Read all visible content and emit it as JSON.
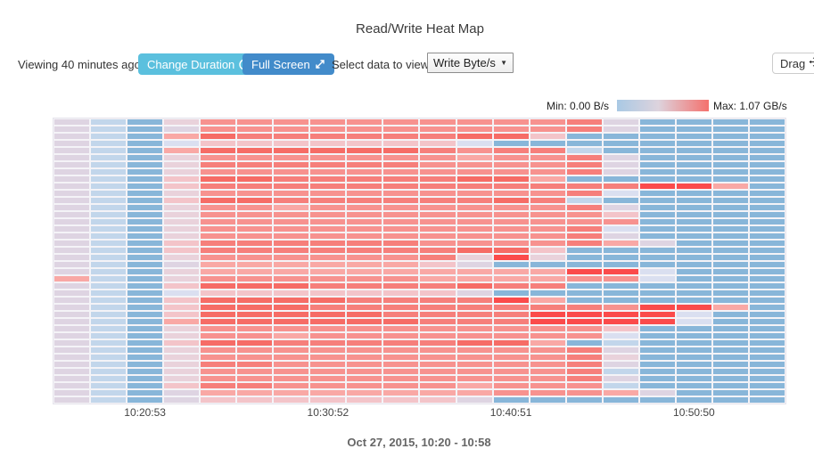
{
  "header": {
    "title": "Read/Write Heat Map"
  },
  "toolbar": {
    "viewing_label": "Viewing 40 minutes ago.",
    "change_duration_label": "Change Duration",
    "full_screen_label": "Full Screen",
    "select_label": "Select data to view",
    "select_value": "Write Byte/s",
    "drag_label": "Drag"
  },
  "legend": {
    "min_label": "Min: 0.00 B/s",
    "max_label": "Max: 1.07 GB/s",
    "gradient": [
      "#a9c9e4",
      "#ddd3dd",
      "#f4716d"
    ]
  },
  "colors": {
    "info_button": "#5bc0de",
    "primary_button": "#428bca",
    "low_blue": "#88b6d9",
    "high_red": "#fb4b4b"
  },
  "footer": {
    "date_range": "Oct 27, 2015, 10:20 - 10:58"
  },
  "chart_data": {
    "type": "heatmap",
    "title": "Read/Write Heat Map",
    "metric": "Write Byte/s",
    "min_value_label": "0.00 B/s",
    "max_value_label": "1.07 GB/s",
    "columns": 20,
    "rows_count": 40,
    "scale": "cell buckets 0-10: 0 = min 0.00 B/s (steel blue), 10 = max 1.07 GB/s (bright red)",
    "x_ticks": [
      {
        "label": "10:20:53",
        "col": 2
      },
      {
        "label": "10:30:52",
        "col": 7
      },
      {
        "label": "10:40:51",
        "col": 12
      },
      {
        "label": "10:50:50",
        "col": 17
      }
    ],
    "palette": [
      "#88b6d9",
      "#c2d6eb",
      "#dadff0",
      "#ded4e2",
      "#e9d2db",
      "#f3c4c9",
      "#f9a8a5",
      "#f7928f",
      "#f67f7b",
      "#f66c66",
      "#fb4b4b"
    ],
    "rows": [
      [
        3,
        1,
        0,
        4,
        7,
        7,
        7,
        7,
        7,
        7,
        7,
        7,
        7,
        7,
        8,
        3,
        0,
        0,
        0,
        0
      ],
      [
        3,
        1,
        0,
        3,
        7,
        7,
        7,
        7,
        7,
        7,
        7,
        7,
        7,
        7,
        8,
        3,
        0,
        0,
        0,
        0
      ],
      [
        3,
        1,
        0,
        6,
        9,
        8,
        8,
        8,
        8,
        8,
        8,
        9,
        9,
        5,
        0,
        0,
        0,
        0,
        0,
        0
      ],
      [
        3,
        1,
        0,
        2,
        5,
        5,
        5,
        5,
        5,
        5,
        5,
        2,
        0,
        0,
        0,
        0,
        0,
        0,
        0,
        0
      ],
      [
        3,
        1,
        0,
        6,
        9,
        9,
        9,
        9,
        9,
        9,
        8,
        7,
        8,
        8,
        1,
        0,
        0,
        0,
        0,
        0
      ],
      [
        3,
        1,
        0,
        4,
        7,
        7,
        7,
        7,
        7,
        7,
        7,
        6,
        7,
        7,
        8,
        3,
        0,
        0,
        0,
        0
      ],
      [
        3,
        1,
        0,
        4,
        8,
        8,
        8,
        8,
        8,
        8,
        7,
        7,
        7,
        7,
        8,
        3,
        0,
        0,
        0,
        0
      ],
      [
        3,
        1,
        0,
        4,
        7,
        7,
        7,
        7,
        7,
        7,
        7,
        7,
        7,
        7,
        8,
        3,
        0,
        0,
        0,
        0
      ],
      [
        3,
        1,
        0,
        5,
        9,
        9,
        8,
        8,
        8,
        8,
        8,
        9,
        9,
        6,
        0,
        0,
        0,
        0,
        0,
        0
      ],
      [
        3,
        1,
        0,
        5,
        8,
        8,
        8,
        8,
        8,
        8,
        8,
        8,
        8,
        8,
        8,
        8,
        10,
        10,
        6,
        0
      ],
      [
        3,
        1,
        0,
        4,
        7,
        7,
        7,
        7,
        7,
        7,
        7,
        7,
        7,
        7,
        8,
        2,
        0,
        0,
        0,
        0
      ],
      [
        3,
        1,
        0,
        5,
        9,
        9,
        8,
        8,
        8,
        8,
        8,
        8,
        9,
        8,
        1,
        0,
        0,
        0,
        0,
        0
      ],
      [
        3,
        1,
        0,
        4,
        7,
        7,
        6,
        7,
        7,
        7,
        7,
        7,
        7,
        7,
        8,
        3,
        0,
        0,
        0,
        0
      ],
      [
        3,
        1,
        0,
        4,
        7,
        7,
        7,
        7,
        7,
        7,
        7,
        7,
        7,
        7,
        7,
        5,
        0,
        0,
        0,
        0
      ],
      [
        3,
        1,
        0,
        4,
        7,
        7,
        7,
        7,
        7,
        7,
        7,
        7,
        7,
        7,
        7,
        7,
        0,
        0,
        0,
        0
      ],
      [
        3,
        1,
        0,
        4,
        7,
        7,
        7,
        7,
        7,
        7,
        7,
        7,
        7,
        7,
        8,
        2,
        0,
        0,
        0,
        0
      ],
      [
        3,
        1,
        0,
        4,
        7,
        7,
        7,
        7,
        7,
        7,
        7,
        7,
        7,
        7,
        8,
        3,
        0,
        0,
        0,
        0
      ],
      [
        3,
        1,
        0,
        5,
        8,
        8,
        8,
        8,
        8,
        8,
        7,
        7,
        7,
        7,
        8,
        6,
        3,
        0,
        0,
        0
      ],
      [
        3,
        1,
        0,
        5,
        8,
        8,
        8,
        8,
        8,
        8,
        8,
        9,
        9,
        5,
        0,
        0,
        0,
        0,
        0,
        0
      ],
      [
        3,
        1,
        0,
        4,
        7,
        7,
        7,
        7,
        7,
        7,
        8,
        4,
        10,
        4,
        0,
        0,
        0,
        0,
        0,
        0
      ],
      [
        3,
        1,
        0,
        3,
        6,
        6,
        6,
        6,
        6,
        6,
        5,
        3,
        0,
        0,
        0,
        0,
        0,
        0,
        0,
        0
      ],
      [
        3,
        1,
        0,
        4,
        6,
        6,
        6,
        6,
        6,
        6,
        6,
        6,
        6,
        6,
        10,
        10,
        2,
        0,
        0,
        0
      ],
      [
        6,
        1,
        0,
        4,
        7,
        7,
        7,
        7,
        7,
        7,
        6,
        6,
        6,
        6,
        7,
        7,
        2,
        0,
        0,
        0
      ],
      [
        3,
        1,
        0,
        5,
        9,
        9,
        9,
        8,
        8,
        8,
        8,
        9,
        8,
        8,
        0,
        0,
        0,
        0,
        0,
        0
      ],
      [
        3,
        1,
        0,
        2,
        5,
        5,
        5,
        5,
        5,
        5,
        5,
        3,
        0,
        0,
        0,
        0,
        0,
        0,
        0,
        0
      ],
      [
        3,
        1,
        0,
        5,
        9,
        9,
        9,
        9,
        8,
        8,
        8,
        8,
        10,
        6,
        0,
        0,
        0,
        0,
        0,
        0
      ],
      [
        3,
        1,
        0,
        5,
        9,
        9,
        9,
        8,
        8,
        8,
        8,
        8,
        8,
        8,
        8,
        7,
        10,
        10,
        6,
        0
      ],
      [
        3,
        1,
        0,
        5,
        9,
        9,
        9,
        9,
        9,
        8,
        8,
        8,
        8,
        10,
        10,
        10,
        10,
        2,
        0,
        0
      ],
      [
        3,
        1,
        0,
        6,
        9,
        9,
        9,
        9,
        9,
        9,
        8,
        8,
        8,
        10,
        10,
        10,
        10,
        2,
        0,
        0
      ],
      [
        3,
        1,
        0,
        4,
        7,
        7,
        7,
        7,
        7,
        7,
        7,
        7,
        7,
        7,
        7,
        5,
        0,
        0,
        0,
        0
      ],
      [
        3,
        1,
        0,
        4,
        7,
        7,
        6,
        7,
        7,
        7,
        7,
        7,
        7,
        7,
        7,
        2,
        0,
        0,
        0,
        0
      ],
      [
        3,
        1,
        0,
        5,
        9,
        9,
        8,
        8,
        8,
        8,
        8,
        9,
        9,
        6,
        0,
        1,
        0,
        0,
        0,
        0
      ],
      [
        3,
        1,
        0,
        4,
        7,
        7,
        7,
        7,
        7,
        7,
        7,
        7,
        7,
        7,
        8,
        3,
        0,
        0,
        0,
        0
      ],
      [
        3,
        1,
        0,
        4,
        7,
        7,
        7,
        7,
        7,
        7,
        7,
        7,
        7,
        7,
        8,
        4,
        0,
        0,
        0,
        0
      ],
      [
        3,
        1,
        0,
        4,
        8,
        8,
        7,
        7,
        7,
        7,
        7,
        7,
        7,
        7,
        8,
        3,
        0,
        0,
        0,
        0
      ],
      [
        3,
        1,
        0,
        4,
        7,
        7,
        7,
        7,
        7,
        7,
        7,
        7,
        7,
        7,
        8,
        1,
        0,
        0,
        0,
        0
      ],
      [
        3,
        1,
        0,
        4,
        7,
        7,
        7,
        7,
        7,
        7,
        7,
        7,
        7,
        7,
        8,
        3,
        0,
        0,
        0,
        0
      ],
      [
        3,
        1,
        0,
        5,
        8,
        8,
        7,
        7,
        7,
        7,
        7,
        6,
        7,
        7,
        7,
        1,
        0,
        0,
        0,
        0
      ],
      [
        3,
        1,
        0,
        3,
        6,
        6,
        6,
        6,
        6,
        6,
        6,
        6,
        7,
        7,
        7,
        6,
        3,
        0,
        0,
        0
      ],
      [
        3,
        1,
        0,
        3,
        5,
        5,
        5,
        5,
        5,
        5,
        5,
        3,
        0,
        0,
        0,
        0,
        0,
        0,
        0,
        0
      ]
    ]
  }
}
